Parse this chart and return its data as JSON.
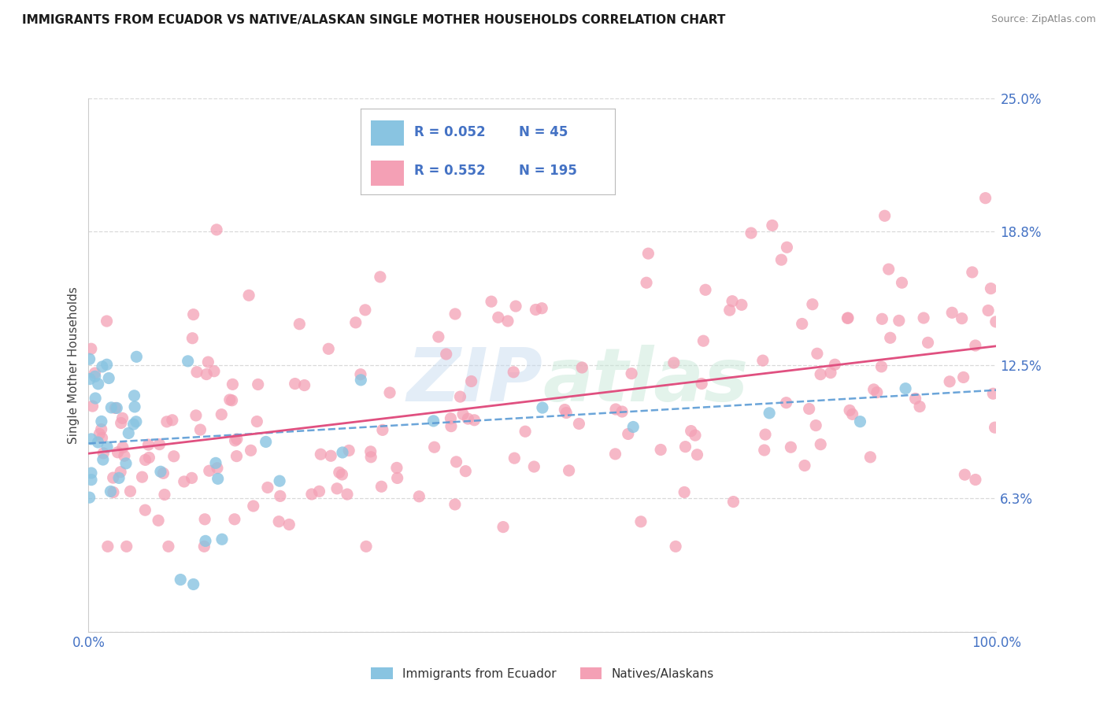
{
  "title": "IMMIGRANTS FROM ECUADOR VS NATIVE/ALASKAN SINGLE MOTHER HOUSEHOLDS CORRELATION CHART",
  "source": "Source: ZipAtlas.com",
  "ylabel": "Single Mother Households",
  "series1_name": "Immigrants from Ecuador",
  "series2_name": "Natives/Alaskans",
  "series1_color": "#89c4e1",
  "series2_color": "#f4a0b5",
  "series1_R": 0.052,
  "series1_N": 45,
  "series2_R": 0.552,
  "series2_N": 195,
  "trend1_color": "#5b9bd5",
  "trend2_color": "#e05080",
  "background_color": "#ffffff",
  "grid_color": "#d0d0d0",
  "watermark": "ZIPAtlas",
  "title_fontsize": 11,
  "axis_label_color": "#4472c4",
  "legend_text_color": "#1a1a1a",
  "ytick_vals": [
    0,
    6.25,
    12.5,
    18.75,
    25.0
  ],
  "ytick_labels": [
    "",
    "6.3%",
    "12.5%",
    "18.8%",
    "25.0%"
  ],
  "xlim": [
    0,
    100
  ],
  "ylim": [
    0,
    25
  ]
}
